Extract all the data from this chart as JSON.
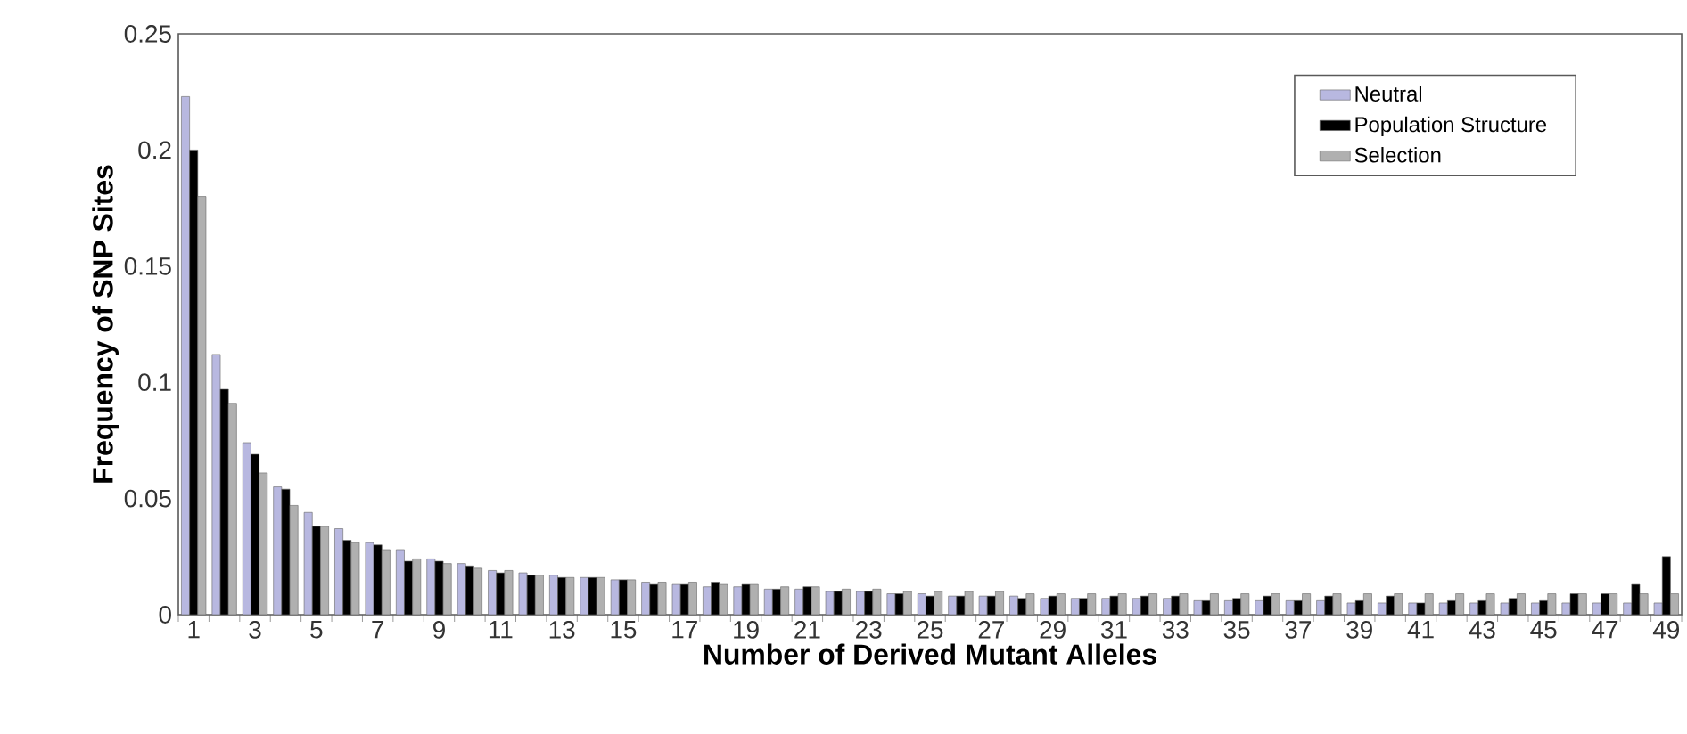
{
  "chart_data": {
    "type": "bar",
    "xlabel": "Number of Derived Mutant Alleles",
    "ylabel": "Frequency of SNP Sites",
    "categories": [
      "1",
      null,
      "3",
      null,
      "5",
      null,
      "7",
      null,
      "9",
      null,
      "11",
      null,
      "13",
      null,
      "15",
      null,
      "17",
      null,
      "19",
      null,
      "21",
      null,
      "23",
      null,
      "25",
      null,
      "27",
      null,
      "29",
      null,
      "31",
      null,
      "33",
      null,
      "35",
      null,
      "37",
      null,
      "39",
      null,
      "41",
      null,
      "43",
      null,
      "45",
      null,
      "47",
      null,
      "49"
    ],
    "series": [
      {
        "name": "Neutral",
        "color": "#b8b8e0",
        "values": [
          0.223,
          0.112,
          0.074,
          0.055,
          0.044,
          0.037,
          0.031,
          0.028,
          0.024,
          0.022,
          0.019,
          0.018,
          0.017,
          0.016,
          0.015,
          0.014,
          0.013,
          0.012,
          0.012,
          0.011,
          0.011,
          0.01,
          0.01,
          0.009,
          0.009,
          0.008,
          0.008,
          0.008,
          0.007,
          0.007,
          0.007,
          0.007,
          0.007,
          0.006,
          0.006,
          0.006,
          0.006,
          0.006,
          0.005,
          0.005,
          0.005,
          0.005,
          0.005,
          0.005,
          0.005,
          0.005,
          0.005,
          0.005,
          0.005
        ]
      },
      {
        "name": "Population Structure",
        "color": "#000000",
        "values": [
          0.2,
          0.097,
          0.069,
          0.054,
          0.038,
          0.032,
          0.03,
          0.023,
          0.023,
          0.021,
          0.018,
          0.017,
          0.016,
          0.016,
          0.015,
          0.013,
          0.013,
          0.014,
          0.013,
          0.011,
          0.012,
          0.01,
          0.01,
          0.009,
          0.008,
          0.008,
          0.008,
          0.007,
          0.008,
          0.007,
          0.008,
          0.008,
          0.008,
          0.006,
          0.007,
          0.008,
          0.006,
          0.008,
          0.006,
          0.008,
          0.005,
          0.006,
          0.006,
          0.007,
          0.006,
          0.009,
          0.009,
          0.013,
          0.025
        ]
      },
      {
        "name": "Selection",
        "color": "#b0b0b0",
        "values": [
          0.18,
          0.091,
          0.061,
          0.047,
          0.038,
          0.031,
          0.028,
          0.024,
          0.022,
          0.02,
          0.019,
          0.017,
          0.016,
          0.016,
          0.015,
          0.014,
          0.014,
          0.013,
          0.013,
          0.012,
          0.012,
          0.011,
          0.011,
          0.01,
          0.01,
          0.01,
          0.01,
          0.009,
          0.009,
          0.009,
          0.009,
          0.009,
          0.009,
          0.009,
          0.009,
          0.009,
          0.009,
          0.009,
          0.009,
          0.009,
          0.009,
          0.009,
          0.009,
          0.009,
          0.009,
          0.009,
          0.009,
          0.009,
          0.009
        ]
      }
    ],
    "ylim": [
      0,
      0.25
    ],
    "yticks": [
      0,
      0.05,
      0.1,
      0.15,
      0.2,
      0.25
    ],
    "legend": "top right"
  }
}
